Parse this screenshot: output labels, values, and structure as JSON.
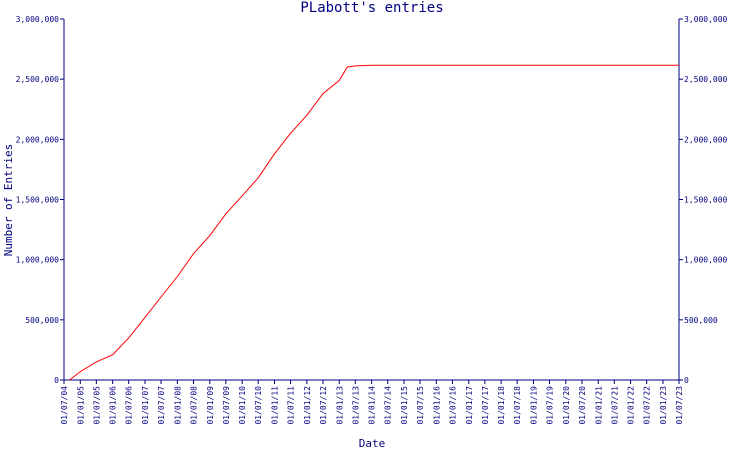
{
  "chart_data": {
    "type": "line",
    "title": "PLabott's entries",
    "xlabel": "Date",
    "ylabel": "Number of Entries",
    "ylim": [
      0,
      3000000
    ],
    "yticks": [
      0,
      500000,
      1000000,
      1500000,
      2000000,
      2500000,
      3000000
    ],
    "ytick_labels": [
      "0",
      "500,000",
      "1,000,000",
      "1,500,000",
      "2,000,000",
      "2,500,000",
      "3,000,000"
    ],
    "xlim": [
      "2004-07-01",
      "2023-07-01"
    ],
    "xtick_labels": [
      "01/07/04",
      "01/01/05",
      "01/07/05",
      "01/01/06",
      "01/07/06",
      "01/01/07",
      "01/07/07",
      "01/01/08",
      "01/07/08",
      "01/01/09",
      "01/07/09",
      "01/01/10",
      "01/07/10",
      "01/01/11",
      "01/07/11",
      "01/01/12",
      "01/07/12",
      "01/01/13",
      "01/07/13",
      "01/01/14",
      "01/07/14",
      "01/01/15",
      "01/07/15",
      "01/01/16",
      "01/07/16",
      "01/01/17",
      "01/07/17",
      "01/01/18",
      "01/07/18",
      "01/01/19",
      "01/07/19",
      "01/01/20",
      "01/07/20",
      "01/01/21",
      "01/07/21",
      "01/01/22",
      "01/07/22",
      "01/01/23",
      "01/07/23"
    ],
    "grid": false,
    "right_axis_mirrored": true,
    "series": [
      {
        "color": "#ff0000",
        "points": [
          [
            "2004-09-01",
            0
          ],
          [
            "2005-01-01",
            70000
          ],
          [
            "2005-07-01",
            150000
          ],
          [
            "2006-01-01",
            210000
          ],
          [
            "2006-07-01",
            350000
          ],
          [
            "2007-01-01",
            520000
          ],
          [
            "2007-07-01",
            690000
          ],
          [
            "2008-01-01",
            860000
          ],
          [
            "2008-07-01",
            1050000
          ],
          [
            "2009-01-01",
            1200000
          ],
          [
            "2009-07-01",
            1380000
          ],
          [
            "2010-01-01",
            1530000
          ],
          [
            "2010-07-01",
            1680000
          ],
          [
            "2011-01-01",
            1880000
          ],
          [
            "2011-07-01",
            2050000
          ],
          [
            "2012-01-01",
            2200000
          ],
          [
            "2012-07-01",
            2380000
          ],
          [
            "2013-01-01",
            2490000
          ],
          [
            "2013-04-01",
            2600000
          ],
          [
            "2013-07-01",
            2610000
          ],
          [
            "2014-01-01",
            2615000
          ],
          [
            "2023-07-01",
            2615000
          ]
        ]
      }
    ]
  }
}
